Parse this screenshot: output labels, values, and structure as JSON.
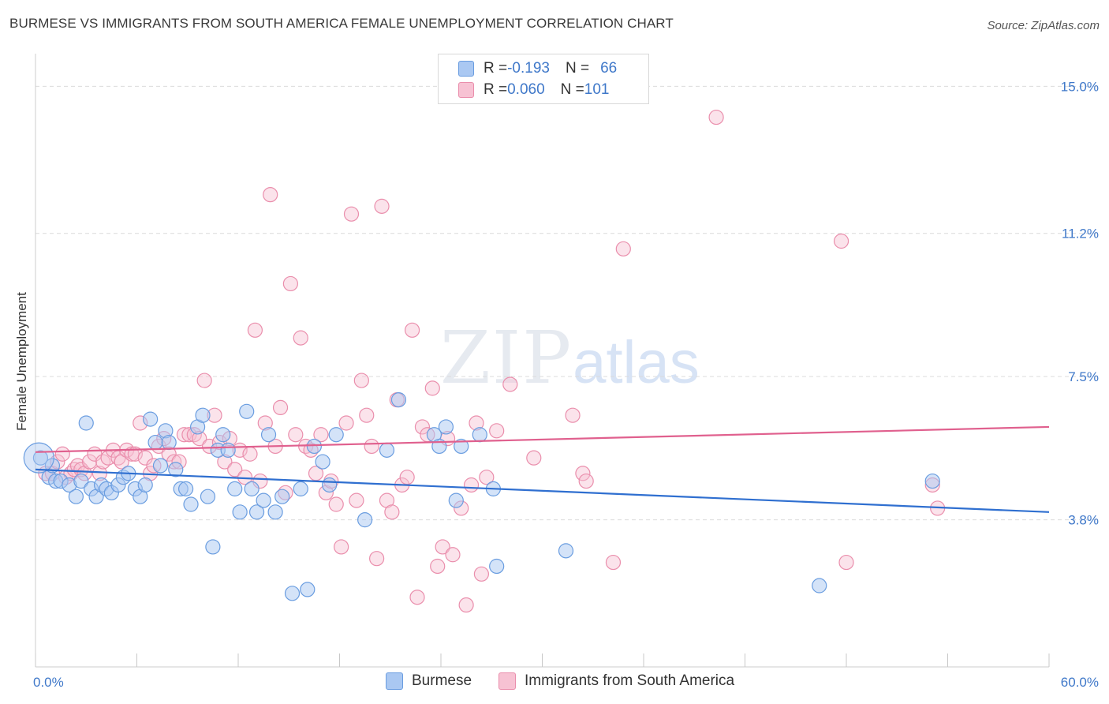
{
  "title": "BURMESE VS IMMIGRANTS FROM SOUTH AMERICA FEMALE UNEMPLOYMENT CORRELATION CHART",
  "source": "Source: ZipAtlas.com",
  "watermark": {
    "zip": "ZIP",
    "atlas": "atlas"
  },
  "colors": {
    "blue": "#6a9de0",
    "blue_fill": "#aac8f2",
    "pink": "#ea8eac",
    "pink_fill": "#f7c2d3",
    "blue_line": "#2f6fd0",
    "pink_line": "#e0608e",
    "tick_label": "#3f78c9",
    "grid": "#dcdcdc"
  },
  "legend": {
    "rows": [
      {
        "r_label": "R = ",
        "r_value": "-0.193",
        "n_label": "N = ",
        "n_value": "66"
      },
      {
        "r_label": "R = ",
        "r_value": "0.060",
        "n_label": "N = ",
        "n_value": "101"
      }
    ]
  },
  "chart_data": {
    "type": "scatter",
    "title": "BURMESE VS IMMIGRANTS FROM SOUTH AMERICA FEMALE UNEMPLOYMENT CORRELATION CHART",
    "xlabel": "",
    "ylabel": "Female Unemployment",
    "xlim": [
      0,
      60
    ],
    "ylim": [
      0,
      15.7
    ],
    "x_tick_labels": [
      "0.0%",
      "60.0%"
    ],
    "y_ticks": [
      3.8,
      7.5,
      11.2,
      15.0
    ],
    "y_tick_labels": [
      "3.8%",
      "7.5%",
      "11.2%",
      "15.0%"
    ],
    "grid": "horizontal dashed",
    "legend_position": "top-center",
    "series": [
      {
        "name": "Burmese",
        "r": -0.193,
        "n": 66,
        "trend": {
          "x": [
            0,
            60
          ],
          "y": [
            5.1,
            4.0
          ]
        },
        "points": [
          [
            0.3,
            5.4
          ],
          [
            0.8,
            4.9
          ],
          [
            1.0,
            5.2
          ],
          [
            1.2,
            4.8
          ],
          [
            1.5,
            4.8
          ],
          [
            2.0,
            4.7
          ],
          [
            2.4,
            4.4
          ],
          [
            2.7,
            4.8
          ],
          [
            3.0,
            6.3
          ],
          [
            3.3,
            4.6
          ],
          [
            3.6,
            4.4
          ],
          [
            3.9,
            4.7
          ],
          [
            4.2,
            4.6
          ],
          [
            4.5,
            4.5
          ],
          [
            4.9,
            4.7
          ],
          [
            5.2,
            4.9
          ],
          [
            5.5,
            5.0
          ],
          [
            5.9,
            4.6
          ],
          [
            6.2,
            4.4
          ],
          [
            6.5,
            4.7
          ],
          [
            6.8,
            6.4
          ],
          [
            7.1,
            5.8
          ],
          [
            7.4,
            5.2
          ],
          [
            7.7,
            6.1
          ],
          [
            7.9,
            5.8
          ],
          [
            8.3,
            5.1
          ],
          [
            8.6,
            4.6
          ],
          [
            8.9,
            4.6
          ],
          [
            9.2,
            4.2
          ],
          [
            9.6,
            6.2
          ],
          [
            9.9,
            6.5
          ],
          [
            10.2,
            4.4
          ],
          [
            10.5,
            3.1
          ],
          [
            10.8,
            5.6
          ],
          [
            11.1,
            6.0
          ],
          [
            11.4,
            5.6
          ],
          [
            11.8,
            4.6
          ],
          [
            12.1,
            4.0
          ],
          [
            12.5,
            6.6
          ],
          [
            12.8,
            4.6
          ],
          [
            13.1,
            4.0
          ],
          [
            13.5,
            4.3
          ],
          [
            13.8,
            6.0
          ],
          [
            14.2,
            4.0
          ],
          [
            14.6,
            4.4
          ],
          [
            15.2,
            1.9
          ],
          [
            15.7,
            4.6
          ],
          [
            16.1,
            2.0
          ],
          [
            16.5,
            5.7
          ],
          [
            17.0,
            5.3
          ],
          [
            17.4,
            4.7
          ],
          [
            17.8,
            6.0
          ],
          [
            19.5,
            3.8
          ],
          [
            20.8,
            5.6
          ],
          [
            21.5,
            6.9
          ],
          [
            23.6,
            6.0
          ],
          [
            23.9,
            5.7
          ],
          [
            24.3,
            6.2
          ],
          [
            24.9,
            4.3
          ],
          [
            25.2,
            5.7
          ],
          [
            26.3,
            6.0
          ],
          [
            27.1,
            4.6
          ],
          [
            27.3,
            2.6
          ],
          [
            31.4,
            3.0
          ],
          [
            46.4,
            2.1
          ],
          [
            53.1,
            4.8
          ]
        ]
      },
      {
        "name": "Immigrants from South America",
        "r": 0.06,
        "n": 101,
        "trend": {
          "x": [
            0,
            60
          ],
          "y": [
            5.55,
            6.2
          ]
        },
        "points": [
          [
            0.6,
            5.0
          ],
          [
            1.0,
            5.0
          ],
          [
            1.3,
            5.3
          ],
          [
            1.6,
            5.5
          ],
          [
            1.8,
            4.9
          ],
          [
            2.1,
            5.0
          ],
          [
            2.3,
            5.1
          ],
          [
            2.5,
            5.2
          ],
          [
            2.7,
            5.1
          ],
          [
            2.9,
            5.0
          ],
          [
            3.2,
            5.3
          ],
          [
            3.5,
            5.5
          ],
          [
            3.8,
            5.0
          ],
          [
            4.0,
            5.3
          ],
          [
            4.3,
            5.4
          ],
          [
            4.6,
            5.6
          ],
          [
            4.9,
            5.4
          ],
          [
            5.1,
            5.3
          ],
          [
            5.4,
            5.6
          ],
          [
            5.7,
            5.5
          ],
          [
            5.9,
            5.5
          ],
          [
            6.2,
            6.3
          ],
          [
            6.5,
            5.4
          ],
          [
            6.8,
            5.0
          ],
          [
            7.0,
            5.2
          ],
          [
            7.3,
            5.7
          ],
          [
            7.6,
            5.9
          ],
          [
            7.9,
            5.5
          ],
          [
            8.2,
            5.3
          ],
          [
            8.5,
            5.3
          ],
          [
            8.8,
            6.0
          ],
          [
            9.1,
            6.0
          ],
          [
            9.4,
            6.0
          ],
          [
            9.7,
            5.9
          ],
          [
            10.0,
            7.4
          ],
          [
            10.3,
            5.7
          ],
          [
            10.6,
            6.5
          ],
          [
            10.9,
            5.8
          ],
          [
            11.2,
            5.3
          ],
          [
            11.5,
            5.9
          ],
          [
            11.8,
            5.1
          ],
          [
            12.1,
            5.6
          ],
          [
            12.4,
            4.9
          ],
          [
            12.7,
            5.5
          ],
          [
            13.0,
            8.7
          ],
          [
            13.3,
            4.8
          ],
          [
            13.6,
            6.3
          ],
          [
            13.9,
            12.2
          ],
          [
            14.2,
            5.7
          ],
          [
            14.5,
            6.7
          ],
          [
            14.8,
            4.5
          ],
          [
            15.1,
            9.9
          ],
          [
            15.4,
            6.0
          ],
          [
            15.7,
            8.5
          ],
          [
            16.0,
            5.7
          ],
          [
            16.3,
            5.6
          ],
          [
            16.6,
            5.0
          ],
          [
            16.9,
            6.0
          ],
          [
            17.2,
            4.5
          ],
          [
            17.5,
            4.8
          ],
          [
            17.8,
            4.2
          ],
          [
            18.1,
            3.1
          ],
          [
            18.4,
            6.3
          ],
          [
            18.7,
            11.7
          ],
          [
            19.0,
            4.3
          ],
          [
            19.3,
            7.4
          ],
          [
            19.6,
            6.5
          ],
          [
            19.9,
            5.7
          ],
          [
            20.2,
            2.8
          ],
          [
            20.5,
            11.9
          ],
          [
            20.8,
            4.3
          ],
          [
            21.1,
            4.0
          ],
          [
            21.4,
            6.9
          ],
          [
            21.7,
            4.7
          ],
          [
            22.0,
            4.9
          ],
          [
            22.3,
            8.7
          ],
          [
            22.6,
            1.8
          ],
          [
            22.9,
            6.2
          ],
          [
            23.2,
            6.0
          ],
          [
            23.5,
            7.2
          ],
          [
            23.8,
            2.6
          ],
          [
            24.1,
            3.1
          ],
          [
            24.4,
            5.9
          ],
          [
            24.7,
            2.9
          ],
          [
            25.2,
            4.1
          ],
          [
            25.5,
            1.6
          ],
          [
            25.8,
            4.7
          ],
          [
            26.1,
            6.3
          ],
          [
            26.4,
            2.4
          ],
          [
            26.7,
            4.9
          ],
          [
            27.3,
            6.1
          ],
          [
            28.1,
            7.3
          ],
          [
            29.5,
            5.4
          ],
          [
            31.8,
            6.5
          ],
          [
            32.4,
            5.0
          ],
          [
            32.6,
            4.8
          ],
          [
            34.2,
            2.7
          ],
          [
            34.8,
            10.8
          ],
          [
            40.3,
            14.2
          ],
          [
            48.0,
            2.7
          ],
          [
            53.1,
            4.7
          ],
          [
            53.4,
            4.1
          ],
          [
            47.7,
            11.0
          ]
        ]
      }
    ]
  },
  "bottom_legend": [
    "Burmese",
    "Immigrants from South America"
  ]
}
